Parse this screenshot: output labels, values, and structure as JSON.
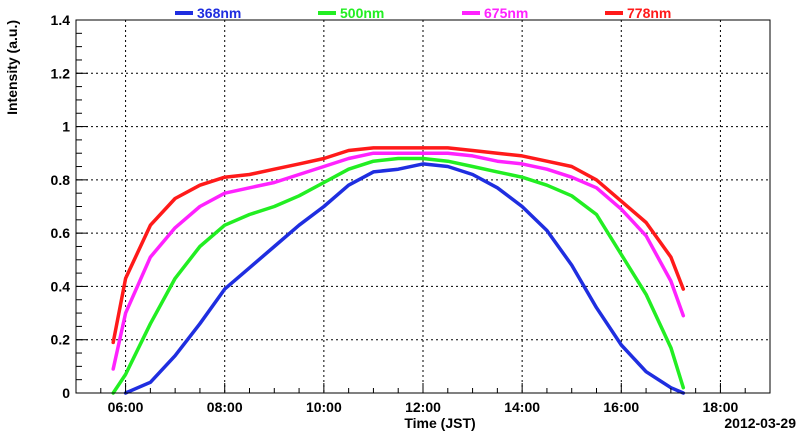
{
  "chart_data": {
    "type": "line",
    "xlabel": "Time (JST)",
    "ylabel": "Intensity (a.u.)",
    "date_label": "2012-03-29",
    "xlim": [
      "05:00",
      "19:00"
    ],
    "ylim": [
      0,
      1.4
    ],
    "x_ticks": [
      "06:00",
      "08:00",
      "10:00",
      "12:00",
      "14:00",
      "16:00",
      "18:00"
    ],
    "y_ticks": [
      "0",
      "0.2",
      "0.4",
      "0.6",
      "0.8",
      "1",
      "1.2",
      "1.4"
    ],
    "grid": true,
    "legend_position": "top",
    "series": [
      {
        "name": "368nm",
        "color": "#1f2ee0",
        "x": [
          "06:00",
          "06:30",
          "07:00",
          "07:30",
          "08:00",
          "08:30",
          "09:00",
          "09:30",
          "10:00",
          "10:30",
          "11:00",
          "11:30",
          "12:00",
          "12:30",
          "13:00",
          "13:30",
          "14:00",
          "14:30",
          "15:00",
          "15:30",
          "16:00",
          "16:30",
          "17:00",
          "17:15"
        ],
        "values": [
          0.0,
          0.04,
          0.14,
          0.26,
          0.39,
          0.47,
          0.55,
          0.63,
          0.7,
          0.78,
          0.83,
          0.84,
          0.86,
          0.85,
          0.82,
          0.77,
          0.7,
          0.61,
          0.48,
          0.32,
          0.18,
          0.08,
          0.02,
          0.0
        ]
      },
      {
        "name": "500nm",
        "color": "#22ee22",
        "x": [
          "05:45",
          "06:00",
          "06:30",
          "07:00",
          "07:30",
          "08:00",
          "08:30",
          "09:00",
          "09:30",
          "10:00",
          "10:30",
          "11:00",
          "11:30",
          "12:00",
          "12:30",
          "13:00",
          "13:30",
          "14:00",
          "14:30",
          "15:00",
          "15:30",
          "16:00",
          "16:30",
          "17:00",
          "17:15"
        ],
        "values": [
          0.0,
          0.07,
          0.26,
          0.43,
          0.55,
          0.63,
          0.67,
          0.7,
          0.74,
          0.79,
          0.84,
          0.87,
          0.88,
          0.88,
          0.87,
          0.85,
          0.83,
          0.81,
          0.78,
          0.74,
          0.67,
          0.52,
          0.37,
          0.17,
          0.02
        ]
      },
      {
        "name": "675nm",
        "color": "#ff22ff",
        "x": [
          "05:45",
          "06:00",
          "06:30",
          "07:00",
          "07:30",
          "08:00",
          "08:30",
          "09:00",
          "09:30",
          "10:00",
          "10:30",
          "11:00",
          "11:30",
          "12:00",
          "12:30",
          "13:00",
          "13:30",
          "14:00",
          "14:30",
          "15:00",
          "15:30",
          "16:00",
          "16:30",
          "17:00",
          "17:15"
        ],
        "values": [
          0.09,
          0.3,
          0.51,
          0.62,
          0.7,
          0.75,
          0.77,
          0.79,
          0.82,
          0.85,
          0.88,
          0.9,
          0.9,
          0.9,
          0.9,
          0.89,
          0.87,
          0.86,
          0.84,
          0.81,
          0.77,
          0.69,
          0.59,
          0.42,
          0.29
        ]
      },
      {
        "name": "778nm",
        "color": "#ff1a1a",
        "x": [
          "05:45",
          "06:00",
          "06:30",
          "07:00",
          "07:30",
          "08:00",
          "08:30",
          "09:00",
          "09:30",
          "10:00",
          "10:30",
          "11:00",
          "11:30",
          "12:00",
          "12:30",
          "13:00",
          "13:30",
          "14:00",
          "14:30",
          "15:00",
          "15:30",
          "16:00",
          "16:30",
          "17:00",
          "17:15"
        ],
        "values": [
          0.19,
          0.43,
          0.63,
          0.73,
          0.78,
          0.81,
          0.82,
          0.84,
          0.86,
          0.88,
          0.91,
          0.92,
          0.92,
          0.92,
          0.92,
          0.91,
          0.9,
          0.89,
          0.87,
          0.85,
          0.8,
          0.72,
          0.64,
          0.51,
          0.39
        ]
      }
    ]
  }
}
